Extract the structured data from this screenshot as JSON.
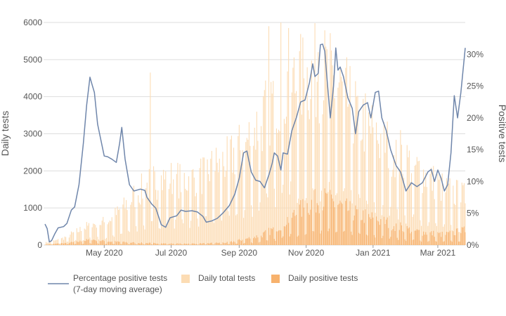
{
  "chart_data": {
    "type": "bar+line",
    "title": "",
    "colors": {
      "total_bars": "#fcdcb4",
      "positive_bars": "#f7b26d",
      "pct_line": "#6f86ab",
      "grid": "#dddddd",
      "text": "#555555"
    },
    "y_left": {
      "label": "Daily tests",
      "lim": [
        0,
        6000
      ],
      "ticks": [
        0,
        1000,
        2000,
        3000,
        4000,
        5000,
        6000
      ],
      "tick_labels": [
        "0",
        "1000",
        "2000",
        "3000",
        "4000",
        "5000",
        "6000"
      ]
    },
    "y_right": {
      "label": "Positive tests",
      "lim": [
        0,
        35
      ],
      "ticks": [
        0,
        5,
        10,
        15,
        20,
        25,
        30
      ],
      "tick_labels": [
        "0%",
        "5%",
        "10%",
        "15%",
        "20%",
        "25%",
        "30%"
      ]
    },
    "x_axis": {
      "start": "2020-03-08",
      "end": "2021-03-26",
      "ticks": [
        "2020-05-01",
        "2020-07-01",
        "2020-09-01",
        "2020-11-01",
        "2021-01-01",
        "2021-03-01"
      ],
      "tick_labels": [
        "May 2020",
        "Jul 2020",
        "Sep 2020",
        "Nov 2020",
        "Jan 2021",
        "Mar 2021"
      ]
    },
    "legend": {
      "position": "bottom",
      "items": [
        {
          "key": "pct",
          "label_line1": "Percentage positive tests",
          "label_line2": "(7-day moving average)"
        },
        {
          "key": "total",
          "label_line1": "Daily total tests",
          "label_line2": ""
        },
        {
          "key": "positive",
          "label_line1": "Daily positive tests",
          "label_line2": ""
        }
      ]
    },
    "series": [
      {
        "name": "Daily total tests",
        "key": "total",
        "points": [
          [
            "2020-03-08",
            60
          ],
          [
            "2020-03-22",
            150
          ],
          [
            "2020-04-05",
            350
          ],
          [
            "2020-04-19",
            550
          ],
          [
            "2020-05-03",
            620
          ],
          [
            "2020-05-17",
            950
          ],
          [
            "2020-05-31",
            1400
          ],
          [
            "2020-06-14",
            1700
          ],
          [
            "2020-06-28",
            1800
          ],
          [
            "2020-07-12",
            1750
          ],
          [
            "2020-07-26",
            1850
          ],
          [
            "2020-08-09",
            2100
          ],
          [
            "2020-08-23",
            2300
          ],
          [
            "2020-09-06",
            2700
          ],
          [
            "2020-09-20",
            3300
          ],
          [
            "2020-10-04",
            4000
          ],
          [
            "2020-10-18",
            4300
          ],
          [
            "2020-11-01",
            4500
          ],
          [
            "2020-11-15",
            4700
          ],
          [
            "2020-11-29",
            4300
          ],
          [
            "2020-12-13",
            3700
          ],
          [
            "2020-12-27",
            3200
          ],
          [
            "2021-01-10",
            2800
          ],
          [
            "2021-01-24",
            2500
          ],
          [
            "2021-02-07",
            2100
          ],
          [
            "2021-02-21",
            1800
          ],
          [
            "2021-03-07",
            1500
          ],
          [
            "2021-03-26",
            1300
          ]
        ],
        "spikes": [
          [
            "2020-06-12",
            4650
          ],
          [
            "2020-09-28",
            5900
          ],
          [
            "2020-10-09",
            6000
          ],
          [
            "2020-10-16",
            5850
          ],
          [
            "2020-11-12",
            5200
          ]
        ]
      },
      {
        "name": "Daily positive tests",
        "key": "positive",
        "points": [
          [
            "2020-03-08",
            10
          ],
          [
            "2020-04-05",
            80
          ],
          [
            "2020-04-19",
            150
          ],
          [
            "2020-05-03",
            100
          ],
          [
            "2020-05-31",
            60
          ],
          [
            "2020-06-28",
            40
          ],
          [
            "2020-07-26",
            40
          ],
          [
            "2020-08-23",
            70
          ],
          [
            "2020-09-20",
            250
          ],
          [
            "2020-10-04",
            450
          ],
          [
            "2020-10-18",
            750
          ],
          [
            "2020-11-01",
            1050
          ],
          [
            "2020-11-15",
            1250
          ],
          [
            "2020-11-29",
            1100
          ],
          [
            "2020-12-13",
            900
          ],
          [
            "2020-12-27",
            750
          ],
          [
            "2021-01-10",
            650
          ],
          [
            "2021-01-24",
            500
          ],
          [
            "2021-02-07",
            380
          ],
          [
            "2021-02-21",
            320
          ],
          [
            "2021-03-07",
            280
          ],
          [
            "2021-03-26",
            400
          ]
        ]
      },
      {
        "name": "Percentage positive tests (7-day moving average)",
        "key": "pct",
        "points": [
          [
            "2020-03-08",
            3.3
          ],
          [
            "2020-03-10",
            2.6
          ],
          [
            "2020-03-12",
            0.5
          ],
          [
            "2020-03-14",
            0.7
          ],
          [
            "2020-03-17",
            1.8
          ],
          [
            "2020-03-20",
            2.7
          ],
          [
            "2020-03-25",
            2.9
          ],
          [
            "2020-03-28",
            3.4
          ],
          [
            "2020-04-01",
            5.5
          ],
          [
            "2020-04-04",
            6.0
          ],
          [
            "2020-04-08",
            9.5
          ],
          [
            "2020-04-12",
            16.0
          ],
          [
            "2020-04-15",
            22.0
          ],
          [
            "2020-04-18",
            26.4
          ],
          [
            "2020-04-20",
            25.2
          ],
          [
            "2020-04-22",
            24.0
          ],
          [
            "2020-04-25",
            19.0
          ],
          [
            "2020-04-28",
            16.5
          ],
          [
            "2020-05-01",
            14.0
          ],
          [
            "2020-05-04",
            13.9
          ],
          [
            "2020-05-08",
            13.5
          ],
          [
            "2020-05-12",
            13.0
          ],
          [
            "2020-05-15",
            16.0
          ],
          [
            "2020-05-17",
            18.5
          ],
          [
            "2020-05-20",
            13.5
          ],
          [
            "2020-05-24",
            9.5
          ],
          [
            "2020-05-28",
            8.5
          ],
          [
            "2020-06-03",
            8.8
          ],
          [
            "2020-06-07",
            8.6
          ],
          [
            "2020-06-09",
            7.5
          ],
          [
            "2020-06-13",
            6.5
          ],
          [
            "2020-06-17",
            5.8
          ],
          [
            "2020-06-22",
            3.2
          ],
          [
            "2020-06-26",
            2.8
          ],
          [
            "2020-06-30",
            4.3
          ],
          [
            "2020-07-06",
            4.6
          ],
          [
            "2020-07-10",
            5.5
          ],
          [
            "2020-07-14",
            5.3
          ],
          [
            "2020-07-20",
            5.4
          ],
          [
            "2020-07-25",
            5.2
          ],
          [
            "2020-07-30",
            4.5
          ],
          [
            "2020-08-02",
            3.6
          ],
          [
            "2020-08-07",
            3.8
          ],
          [
            "2020-08-12",
            4.2
          ],
          [
            "2020-08-17",
            5.0
          ],
          [
            "2020-08-23",
            6.2
          ],
          [
            "2020-08-28",
            8.0
          ],
          [
            "2020-09-01",
            10.5
          ],
          [
            "2020-09-05",
            14.5
          ],
          [
            "2020-09-08",
            14.8
          ],
          [
            "2020-09-12",
            11.5
          ],
          [
            "2020-09-16",
            10.2
          ],
          [
            "2020-09-20",
            10.0
          ],
          [
            "2020-09-24",
            9.0
          ],
          [
            "2020-09-28",
            11.0
          ],
          [
            "2020-10-01",
            12.8
          ],
          [
            "2020-10-03",
            14.5
          ],
          [
            "2020-10-06",
            14.0
          ],
          [
            "2020-10-09",
            11.8
          ],
          [
            "2020-10-11",
            14.5
          ],
          [
            "2020-10-15",
            14.3
          ],
          [
            "2020-10-19",
            18.0
          ],
          [
            "2020-10-23",
            20.0
          ],
          [
            "2020-10-27",
            22.5
          ],
          [
            "2020-10-31",
            22.8
          ],
          [
            "2020-11-04",
            25.5
          ],
          [
            "2020-11-07",
            28.5
          ],
          [
            "2020-11-09",
            26.5
          ],
          [
            "2020-11-12",
            27.0
          ],
          [
            "2020-11-14",
            31.5
          ],
          [
            "2020-11-16",
            31.6
          ],
          [
            "2020-11-18",
            30.5
          ],
          [
            "2020-11-21",
            24.2
          ],
          [
            "2020-11-23",
            20.0
          ],
          [
            "2020-11-26",
            25.0
          ],
          [
            "2020-11-28",
            31.0
          ],
          [
            "2020-11-30",
            27.5
          ],
          [
            "2020-12-02",
            28.0
          ],
          [
            "2020-12-05",
            26.5
          ],
          [
            "2020-12-09",
            23.2
          ],
          [
            "2020-12-13",
            21.5
          ],
          [
            "2020-12-16",
            17.5
          ],
          [
            "2020-12-19",
            21.0
          ],
          [
            "2020-12-23",
            22.0
          ],
          [
            "2020-12-27",
            22.4
          ],
          [
            "2020-12-30",
            20.0
          ],
          [
            "2021-01-03",
            24.0
          ],
          [
            "2021-01-06",
            24.2
          ],
          [
            "2021-01-09",
            20.0
          ],
          [
            "2021-01-13",
            18.0
          ],
          [
            "2021-01-17",
            15.0
          ],
          [
            "2021-01-22",
            12.5
          ],
          [
            "2021-01-26",
            11.5
          ],
          [
            "2021-01-31",
            8.5
          ],
          [
            "2021-02-05",
            9.8
          ],
          [
            "2021-02-10",
            9.2
          ],
          [
            "2021-02-15",
            9.8
          ],
          [
            "2021-02-20",
            11.5
          ],
          [
            "2021-02-23",
            11.9
          ],
          [
            "2021-02-26",
            10.0
          ],
          [
            "2021-03-01",
            11.8
          ],
          [
            "2021-03-04",
            10.5
          ],
          [
            "2021-03-07",
            8.5
          ],
          [
            "2021-03-10",
            9.5
          ],
          [
            "2021-03-13",
            14.5
          ],
          [
            "2021-03-16",
            23.5
          ],
          [
            "2021-03-19",
            20.0
          ],
          [
            "2021-03-22",
            24.0
          ],
          [
            "2021-03-26",
            31.0
          ]
        ]
      }
    ]
  }
}
